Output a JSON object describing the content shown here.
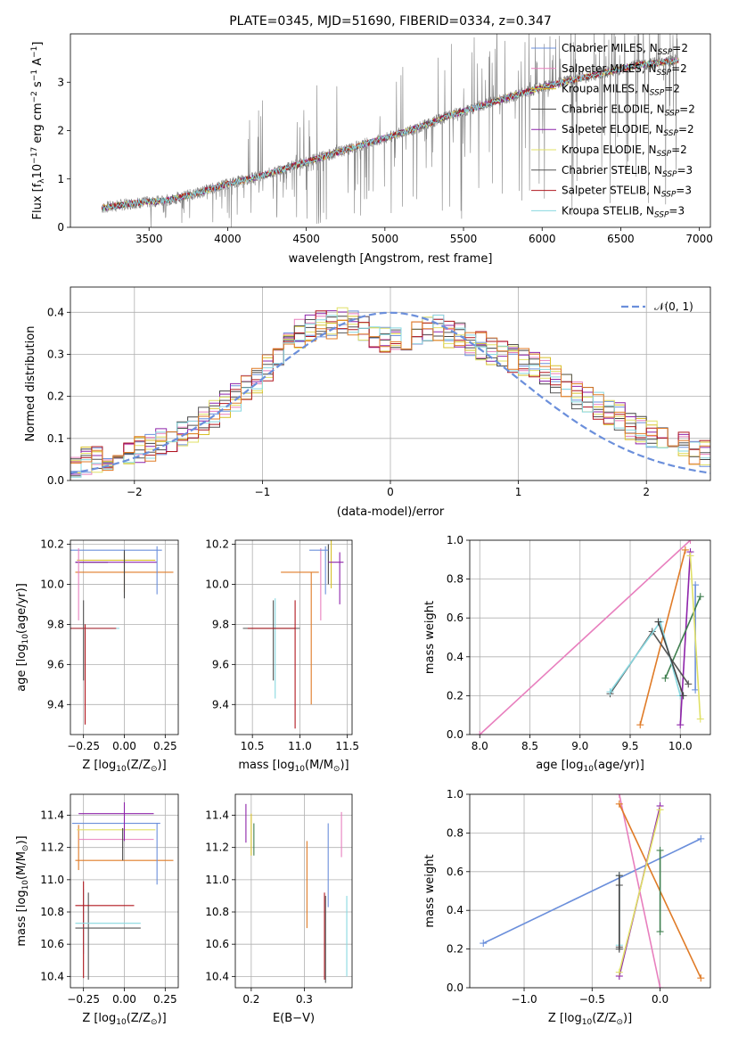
{
  "colors": [
    "#6b8fdb",
    "#e87fbe",
    "#d7c02a",
    "#444444",
    "#8e24aa",
    "#e0e066",
    "#555555",
    "#b0171f",
    "#88d8e0",
    "#e07b27",
    "#3f7f4f"
  ],
  "chart_data": [
    {
      "id": "spectrum",
      "type": "line",
      "title": "PLATE=0345, MJD=51690, FIBERID=0334, z=0.347",
      "xlabel": "wavelength [Angstrom, rest frame]",
      "ylabel": "Flux [f$_\\lambda$10$^{-17}$ erg cm$^{-2}$ s$^{-1}$ A$^{-1}$]",
      "ylabel_parts": [
        "Flux [f",
        "λ",
        "10",
        "−17",
        " erg cm",
        "−2",
        " s",
        "−1",
        " A",
        "−1",
        "]"
      ],
      "xlim": [
        3000,
        7070
      ],
      "ylim": [
        0,
        4.0
      ],
      "xticks": [
        3500,
        4000,
        4500,
        5000,
        5500,
        6000,
        6500,
        7000
      ],
      "yticks": [
        0,
        1,
        2,
        3
      ],
      "data_range": [
        3200,
        6870
      ],
      "continuum": {
        "x": [
          3200,
          3400,
          3600,
          3800,
          4000,
          4200,
          4400,
          4600,
          4800,
          5000,
          5200,
          5400,
          5600,
          5800,
          6000,
          6200,
          6400,
          6600,
          6870
        ],
        "y": [
          0.4,
          0.5,
          0.55,
          0.7,
          0.9,
          1.05,
          1.25,
          1.45,
          1.65,
          1.85,
          2.05,
          2.3,
          2.5,
          2.7,
          2.9,
          3.05,
          3.2,
          3.35,
          3.45
        ]
      },
      "legend": [
        {
          "label": "Chabrier MILES, N",
          "sub": "SSP",
          "tail": "=2",
          "color_index": 0
        },
        {
          "label": "Salpeter MILES, N",
          "sub": "SSP",
          "tail": "=2",
          "color_index": 1
        },
        {
          "label": "Kroupa MILES, N",
          "sub": "SSP",
          "tail": "=2",
          "color_index": 2
        },
        {
          "label": "Chabrier ELODIE, N",
          "sub": "SSP",
          "tail": "=2",
          "color_index": 3
        },
        {
          "label": "Salpeter ELODIE, N",
          "sub": "SSP",
          "tail": "=2",
          "color_index": 4
        },
        {
          "label": "Kroupa ELODIE, N",
          "sub": "SSP",
          "tail": "=2",
          "color_index": 5
        },
        {
          "label": "Chabrier STELIB, N",
          "sub": "SSP",
          "tail": "=3",
          "color_index": 6
        },
        {
          "label": "Salpeter STELIB, N",
          "sub": "SSP",
          "tail": "=3",
          "color_index": 7
        },
        {
          "label": "Kroupa STELIB, N",
          "sub": "SSP",
          "tail": "=3",
          "color_index": 8
        }
      ],
      "legend_position": "top-right",
      "data_color": "#808080"
    },
    {
      "id": "residuals",
      "type": "histogram",
      "xlabel": "(data-model)/error",
      "ylabel": "Normed distribution",
      "xlim": [
        -2.5,
        2.5
      ],
      "ylim": [
        0,
        0.46
      ],
      "xticks": [
        -2,
        -1,
        0,
        1,
        2
      ],
      "yticks": [
        0.0,
        0.1,
        0.2,
        0.3,
        0.4
      ],
      "bin_width": 0.1,
      "base_values": [
        0.04,
        0.045,
        0.05,
        0.055,
        0.06,
        0.065,
        0.07,
        0.08,
        0.09,
        0.1,
        0.11,
        0.12,
        0.14,
        0.16,
        0.18,
        0.2,
        0.22,
        0.24,
        0.27,
        0.3,
        0.33,
        0.35,
        0.36,
        0.37,
        0.37,
        0.38,
        0.37,
        0.36,
        0.35,
        0.34,
        0.34,
        0.34,
        0.35,
        0.36,
        0.36,
        0.35,
        0.34,
        0.33,
        0.32,
        0.31,
        0.3,
        0.29,
        0.28,
        0.27,
        0.26,
        0.24,
        0.22,
        0.2,
        0.19,
        0.18,
        0.16,
        0.15,
        0.13,
        0.12,
        0.11,
        0.1,
        0.09,
        0.08,
        0.07,
        0.06
      ],
      "grid": true,
      "normal_curve": {
        "label": "𝒩(0, 1)",
        "color": "#6b8fdb"
      },
      "legend_position": "top-right"
    },
    {
      "id": "age-vs-Z",
      "type": "errorbar",
      "xlabel": "Z [log$_{10}$(Z/Z$_\\odot$)]",
      "ylabel": "age  [log$_{10}$(age/yr)]",
      "xlim": [
        -0.33,
        0.33
      ],
      "ylim": [
        9.25,
        10.22
      ],
      "xticks": [
        -0.25,
        0.0,
        0.25
      ],
      "xtick_labels": [
        "−0.25",
        "0.00",
        "0.25"
      ],
      "yticks": [
        9.4,
        9.6,
        9.8,
        10.0,
        10.2
      ],
      "grid": true,
      "points": [
        {
          "x": -0.25,
          "y": 9.72,
          "xerr": 0.0,
          "yerr": 0.2,
          "c": 6
        },
        {
          "x": -0.24,
          "y": 9.55,
          "xerr": 0.0,
          "yerr": 0.25,
          "c": 7
        },
        {
          "x": -0.23,
          "y": 9.78,
          "xerr": 0.2,
          "yerr": 0.0,
          "c": 8
        },
        {
          "x": -0.23,
          "y": 9.78,
          "xerr": 0.18,
          "yerr": 0.0,
          "c": 7
        },
        {
          "x": -0.2,
          "y": 10.11,
          "xerr": 0.1,
          "yerr": 0.0,
          "c": 3
        },
        {
          "x": -0.05,
          "y": 10.11,
          "xerr": 0.25,
          "yerr": 0.0,
          "c": 4
        },
        {
          "x": -0.05,
          "y": 10.12,
          "xerr": 0.24,
          "yerr": 0.0,
          "c": 2
        },
        {
          "x": 0.0,
          "y": 10.06,
          "xerr": 0.3,
          "yerr": 0.1,
          "c": 9
        },
        {
          "x": -0.05,
          "y": 10.17,
          "xerr": 0.28,
          "yerr": 0.0,
          "c": 0
        },
        {
          "x": 0.2,
          "y": 10.07,
          "xerr": 0.0,
          "yerr": 0.12,
          "c": 0
        },
        {
          "x": -0.28,
          "y": 10.0,
          "xerr": 0.0,
          "yerr": 0.18,
          "c": 1
        },
        {
          "x": 0.0,
          "y": 10.05,
          "xerr": 0.0,
          "yerr": 0.12,
          "c": 3
        }
      ]
    },
    {
      "id": "age-vs-mass",
      "type": "errorbar",
      "xlabel": "mass [log$_{10}$(M/M$_\\odot$)]",
      "ylabel": "",
      "xlim": [
        10.32,
        11.55
      ],
      "ylim": [
        9.25,
        10.22
      ],
      "xticks": [
        10.5,
        11.0,
        11.5
      ],
      "yticks": [
        9.4,
        9.6,
        9.8,
        10.0,
        10.2
      ],
      "grid": true,
      "points": [
        {
          "x": 10.72,
          "y": 9.72,
          "xerr": 0.0,
          "yerr": 0.2,
          "c": 6
        },
        {
          "x": 10.74,
          "y": 9.68,
          "xerr": 0.0,
          "yerr": 0.25,
          "c": 8
        },
        {
          "x": 10.7,
          "y": 9.78,
          "xerr": 0.3,
          "yerr": 0.0,
          "c": 6
        },
        {
          "x": 10.95,
          "y": 9.6,
          "xerr": 0.0,
          "yerr": 0.32,
          "c": 7
        },
        {
          "x": 10.7,
          "y": 9.78,
          "xerr": 0.25,
          "yerr": 0.0,
          "c": 7
        },
        {
          "x": 11.12,
          "y": 9.73,
          "xerr": 0.0,
          "yerr": 0.33,
          "c": 9
        },
        {
          "x": 11.0,
          "y": 10.06,
          "xerr": 0.2,
          "yerr": 0.0,
          "c": 9
        },
        {
          "x": 11.22,
          "y": 10.0,
          "xerr": 0.0,
          "yerr": 0.18,
          "c": 1
        },
        {
          "x": 11.3,
          "y": 10.1,
          "xerr": 0.0,
          "yerr": 0.1,
          "c": 3
        },
        {
          "x": 11.33,
          "y": 10.1,
          "xerr": 0.0,
          "yerr": 0.12,
          "c": 2
        },
        {
          "x": 11.38,
          "y": 10.11,
          "xerr": 0.08,
          "yerr": 0.0,
          "c": 4
        },
        {
          "x": 11.42,
          "y": 10.03,
          "xerr": 0.0,
          "yerr": 0.13,
          "c": 4
        },
        {
          "x": 11.2,
          "y": 10.17,
          "xerr": 0.1,
          "yerr": 0.0,
          "c": 0
        },
        {
          "x": 11.27,
          "y": 10.07,
          "xerr": 0.0,
          "yerr": 0.12,
          "c": 0
        }
      ]
    },
    {
      "id": "weight-vs-age",
      "type": "line",
      "xlabel": "age  [log$_{10}$(age/yr)]",
      "ylabel": "mass weight",
      "xlim": [
        7.9,
        10.3
      ],
      "ylim": [
        0,
        1.0
      ],
      "xticks": [
        8.0,
        8.5,
        9.0,
        9.5,
        10.0
      ],
      "yticks": [
        0.0,
        0.2,
        0.4,
        0.6,
        0.8,
        1.0
      ],
      "grid": true,
      "series": [
        {
          "x": [
            8.0,
            10.1
          ],
          "y": [
            0.0,
            1.0
          ],
          "c": 1
        },
        {
          "x": [
            9.6,
            10.05
          ],
          "y": [
            0.05,
            0.95
          ],
          "c": 9
        },
        {
          "x": [
            10.0,
            10.1
          ],
          "y": [
            0.05,
            0.94
          ],
          "c": 4
        },
        {
          "x": [
            10.15,
            10.15
          ],
          "y": [
            0.23,
            0.77
          ],
          "c": 0
        },
        {
          "x": [
            9.85,
            10.2
          ],
          "y": [
            0.29,
            0.71
          ],
          "c": 10
        },
        {
          "x": [
            10.1,
            10.2
          ],
          "y": [
            0.92,
            0.08
          ],
          "c": 5
        },
        {
          "x": [
            9.3,
            9.72,
            10.08
          ],
          "y": [
            0.21,
            0.53,
            0.26
          ],
          "c": 6
        },
        {
          "x": [
            9.3,
            9.8,
            10.0
          ],
          "y": [
            0.22,
            0.58,
            0.2
          ],
          "c": 8
        },
        {
          "x": [
            9.78,
            10.03
          ],
          "y": [
            0.58,
            0.2
          ],
          "c": 3
        }
      ]
    },
    {
      "id": "mass-vs-Z",
      "type": "errorbar",
      "xlabel": "Z [log$_{10}$(Z/Z$_\\odot$)]",
      "ylabel": "mass [log$_{10}$(M/M$_\\odot$)]",
      "xlim": [
        -0.33,
        0.33
      ],
      "ylim": [
        10.33,
        11.53
      ],
      "xticks": [
        -0.25,
        0.0,
        0.25
      ],
      "xtick_labels": [
        "−0.25",
        "0.00",
        "0.25"
      ],
      "yticks": [
        10.4,
        10.6,
        10.8,
        11.0,
        11.2,
        11.4
      ],
      "grid": true,
      "points": [
        {
          "x": -0.25,
          "y": 10.74,
          "xerr": 0.0,
          "yerr": 0.2,
          "c": 8
        },
        {
          "x": -0.22,
          "y": 10.65,
          "xerr": 0.0,
          "yerr": 0.27,
          "c": 6
        },
        {
          "x": -0.25,
          "y": 10.69,
          "xerr": 0.0,
          "yerr": 0.3,
          "c": 7
        },
        {
          "x": -0.1,
          "y": 10.7,
          "xerr": 0.2,
          "yerr": 0.0,
          "c": 6
        },
        {
          "x": -0.1,
          "y": 10.73,
          "xerr": 0.2,
          "yerr": 0.0,
          "c": 8
        },
        {
          "x": -0.12,
          "y": 10.84,
          "xerr": 0.18,
          "yerr": 0.0,
          "c": 7
        },
        {
          "x": 0.0,
          "y": 11.12,
          "xerr": 0.3,
          "yerr": 0.0,
          "c": 9
        },
        {
          "x": -0.28,
          "y": 11.2,
          "xerr": 0.0,
          "yerr": 0.14,
          "c": 9
        },
        {
          "x": -0.05,
          "y": 11.25,
          "xerr": 0.23,
          "yerr": 0.0,
          "c": 1
        },
        {
          "x": -0.05,
          "y": 11.31,
          "xerr": 0.24,
          "yerr": 0.0,
          "c": 5
        },
        {
          "x": -0.05,
          "y": 11.35,
          "xerr": 0.27,
          "yerr": 0.0,
          "c": 0
        },
        {
          "x": -0.05,
          "y": 11.41,
          "xerr": 0.23,
          "yerr": 0.0,
          "c": 4
        },
        {
          "x": 0.0,
          "y": 11.36,
          "xerr": 0.0,
          "yerr": 0.12,
          "c": 4
        },
        {
          "x": 0.2,
          "y": 11.16,
          "xerr": 0.0,
          "yerr": 0.19,
          "c": 0
        },
        {
          "x": -0.01,
          "y": 11.22,
          "xerr": 0.0,
          "yerr": 0.1,
          "c": 3
        }
      ]
    },
    {
      "id": "mass-vs-EBV",
      "type": "errorbar",
      "xlabel": "E(B-V)",
      "ylabel": "",
      "xlim": [
        0.17,
        0.39
      ],
      "ylim": [
        10.33,
        11.53
      ],
      "xticks": [
        0.2,
        0.3
      ],
      "xtick_labels": [
        "0.2",
        "0.3"
      ],
      "yticks": [
        10.4,
        10.6,
        10.8,
        11.0,
        11.2,
        11.4
      ],
      "grid": true,
      "points": [
        {
          "x": 0.19,
          "y": 11.35,
          "xerr": 0.0,
          "yerr": 0.12,
          "c": 4
        },
        {
          "x": 0.2,
          "y": 11.28,
          "xerr": 0.0,
          "yerr": 0.13,
          "c": 2
        },
        {
          "x": 0.205,
          "y": 11.25,
          "xerr": 0.0,
          "yerr": 0.1,
          "c": 10
        },
        {
          "x": 0.305,
          "y": 10.97,
          "xerr": 0.0,
          "yerr": 0.27,
          "c": 9
        },
        {
          "x": 0.338,
          "y": 10.65,
          "xerr": 0.0,
          "yerr": 0.27,
          "c": 7
        },
        {
          "x": 0.34,
          "y": 10.63,
          "xerr": 0.0,
          "yerr": 0.27,
          "c": 6
        },
        {
          "x": 0.345,
          "y": 11.09,
          "xerr": 0.0,
          "yerr": 0.26,
          "c": 0
        },
        {
          "x": 0.37,
          "y": 11.28,
          "xerr": 0.0,
          "yerr": 0.14,
          "c": 1
        },
        {
          "x": 0.38,
          "y": 10.65,
          "xerr": 0.0,
          "yerr": 0.25,
          "c": 8
        }
      ]
    },
    {
      "id": "weight-vs-Z",
      "type": "line",
      "xlabel": "Z [log$_{10}$(Z/Z$_\\odot$)]",
      "ylabel": "mass weight",
      "xlim": [
        -1.4,
        0.37
      ],
      "ylim": [
        0,
        1.0
      ],
      "xticks": [
        -1.0,
        -0.5,
        0.0
      ],
      "xtick_labels": [
        "−1.0",
        "−0.5",
        "0.0"
      ],
      "yticks": [
        0.0,
        0.2,
        0.4,
        0.6,
        0.8,
        1.0
      ],
      "grid": true,
      "series": [
        {
          "x": [
            -1.3,
            0.3
          ],
          "y": [
            0.23,
            0.77
          ],
          "c": 0
        },
        {
          "x": [
            -0.3,
            0.0
          ],
          "y": [
            1.0,
            0.0
          ],
          "c": 1
        },
        {
          "x": [
            -0.3,
            0.3
          ],
          "y": [
            0.95,
            0.05
          ],
          "c": 9
        },
        {
          "x": [
            -0.3,
            0.0
          ],
          "y": [
            0.06,
            0.94
          ],
          "c": 4
        },
        {
          "x": [
            -0.3,
            0.0
          ],
          "y": [
            0.08,
            0.92
          ],
          "c": 5
        },
        {
          "x": [
            0.0,
            0.0
          ],
          "y": [
            0.29,
            0.71
          ],
          "c": 10
        },
        {
          "x": [
            -0.3,
            -0.3
          ],
          "y": [
            0.21,
            0.53
          ],
          "c": 6
        },
        {
          "x": [
            -0.3,
            -0.3
          ],
          "y": [
            0.22,
            0.58
          ],
          "c": 8
        },
        {
          "x": [
            -0.3,
            -0.3
          ],
          "y": [
            0.2,
            0.58
          ],
          "c": 3
        }
      ]
    }
  ]
}
